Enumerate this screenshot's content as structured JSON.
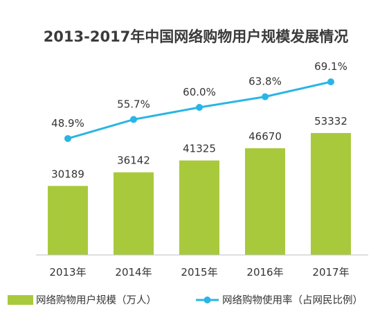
{
  "chart_data": {
    "type": "bar",
    "title": "2013-2017年中国网络购物用户规模发展情况",
    "categories": [
      "2013年",
      "2014年",
      "2015年",
      "2016年",
      "2017年"
    ],
    "series": [
      {
        "name": "网络购物用户规模（万人）",
        "type": "bar",
        "values": [
          30189,
          36142,
          41325,
          46670,
          53332
        ],
        "labels": [
          "30189",
          "36142",
          "41325",
          "46670",
          "53332"
        ]
      },
      {
        "name": "网络购物使用率（占网民比例）",
        "type": "line",
        "values": [
          48.9,
          55.7,
          60.0,
          63.8,
          69.1
        ],
        "labels": [
          "48.9%",
          "55.7%",
          "60.0%",
          "63.8%",
          "69.1%"
        ]
      }
    ],
    "legend_position": "bottom",
    "grid": false,
    "colors": {
      "bar": "#a9c93d",
      "line": "#29b5e6",
      "axis": "#bfbfbf"
    }
  }
}
